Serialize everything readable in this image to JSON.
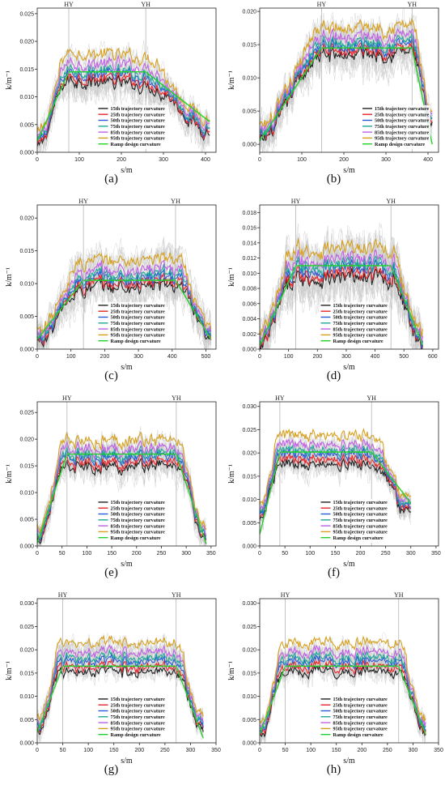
{
  "chart_data": [
    {
      "id": "a",
      "caption": "(a)",
      "type": "line",
      "xlabel": "s/m",
      "ylabel": "k/m⁻¹",
      "xlim": [
        0,
        425
      ],
      "ylim": [
        0,
        0.026
      ],
      "xticks": [
        "0",
        "100",
        "200",
        "300",
        "400"
      ],
      "xtick_values": [
        0,
        100,
        200,
        300,
        400
      ],
      "yticks": [
        "0.000",
        "0.005",
        "0.010",
        "0.015",
        "0.020",
        "0.025"
      ],
      "ytick_values": [
        0,
        0.005,
        0.01,
        0.015,
        0.02,
        0.025
      ],
      "markers": [
        {
          "label": "HY",
          "x": 75
        },
        {
          "label": "YH",
          "x": 258
        }
      ],
      "legend_position": "bottom-center",
      "profile": {
        "s0": 0,
        "s1": 75,
        "s2": 258,
        "s3": 410,
        "k0": 0.0015,
        "k1": 0.0145,
        "k2": 0.0135,
        "k3": 0.0045
      },
      "percentile_offsets": [
        -0.0015,
        -0.0008,
        0.0,
        0.0006,
        0.0018,
        0.0036
      ],
      "design": {
        "s_start": 0,
        "s_hy": 75,
        "s_yh": 258,
        "s_end": 410,
        "k_start": 0.002,
        "k_plateau": 0.0145,
        "k_end": 0.0055
      }
    },
    {
      "id": "b",
      "caption": "(b)",
      "type": "line",
      "xlabel": "s/m",
      "ylabel": "k/m⁻¹",
      "xlim": [
        0,
        425
      ],
      "ylim": [
        -0.0012,
        0.0205
      ],
      "xticks": [
        "0",
        "100",
        "200",
        "300",
        "400"
      ],
      "xtick_values": [
        0,
        100,
        200,
        300,
        400
      ],
      "yticks": [
        "0.000",
        "0.005",
        "0.010",
        "0.015",
        "0.020"
      ],
      "ytick_values": [
        0,
        0.005,
        0.01,
        0.015,
        0.02
      ],
      "markers": [
        {
          "label": "HY",
          "x": 147
        },
        {
          "label": "YH",
          "x": 362
        }
      ],
      "legend_position": "bottom-right",
      "profile": {
        "s0": 0,
        "s1": 147,
        "s2": 362,
        "s3": 410,
        "k0": 0.001,
        "k1": 0.0145,
        "k2": 0.0152,
        "k3": 0.0025
      },
      "percentile_offsets": [
        -0.0012,
        -0.0006,
        0.0,
        0.0005,
        0.0014,
        0.0028
      ],
      "design": {
        "s_start": 0,
        "s_hy": 147,
        "s_yh": 362,
        "s_end": 410,
        "k_start": 0.0005,
        "k_plateau": 0.0145,
        "k_end": 0.0
      }
    },
    {
      "id": "c",
      "caption": "(c)",
      "type": "line",
      "xlabel": "s/m",
      "ylabel": "k/m⁻¹",
      "xlim": [
        0,
        530
      ],
      "ylim": [
        0,
        0.022
      ],
      "xticks": [
        "0",
        "100",
        "200",
        "300",
        "400",
        "500"
      ],
      "xtick_values": [
        0,
        100,
        200,
        300,
        400,
        500
      ],
      "yticks": [
        "0.000",
        "0.005",
        "0.010",
        "0.015",
        "0.020"
      ],
      "ytick_values": [
        0,
        0.005,
        0.01,
        0.015,
        0.02
      ],
      "markers": [
        {
          "label": "HY",
          "x": 137
        },
        {
          "label": "YH",
          "x": 410
        }
      ],
      "legend_position": "bottom-center",
      "profile": {
        "s0": 0,
        "s1": 137,
        "s2": 410,
        "s3": 515,
        "k0": 0.0015,
        "k1": 0.0105,
        "k2": 0.011,
        "k3": 0.0015
      },
      "percentile_offsets": [
        -0.0013,
        -0.0007,
        0.0,
        0.0005,
        0.0013,
        0.0028
      ],
      "design": {
        "s_start": 0,
        "s_hy": 137,
        "s_yh": 410,
        "s_end": 515,
        "k_start": 0.0015,
        "k_plateau": 0.0105,
        "k_end": 0.0015
      }
    },
    {
      "id": "d",
      "caption": "(d)",
      "type": "line",
      "xlabel": "s/m",
      "ylabel": "k/m⁻¹",
      "xlim": [
        0,
        620
      ],
      "ylim": [
        0,
        0.019
      ],
      "xticks": [
        "0",
        "100",
        "200",
        "300",
        "400",
        "500",
        "600"
      ],
      "xtick_values": [
        0,
        100,
        200,
        300,
        400,
        500,
        600
      ],
      "yticks": [
        "0.000",
        "0.002",
        "0.004",
        "0.006",
        "0.008",
        "0.010",
        "0.012",
        "0.014",
        "0.016",
        "0.018"
      ],
      "ytick_values": [
        0,
        0.002,
        0.004,
        0.006,
        0.008,
        0.01,
        0.012,
        0.014,
        0.016,
        0.018
      ],
      "markers": [
        {
          "label": "HY",
          "x": 125
        },
        {
          "label": "YH",
          "x": 455
        }
      ],
      "legend_position": "bottom-center",
      "profile": {
        "s0": 0,
        "s1": 125,
        "s2": 455,
        "s3": 565,
        "k0": 0.0005,
        "k1": 0.0105,
        "k2": 0.0105,
        "k3": 0.0008
      },
      "percentile_offsets": [
        -0.0012,
        -0.0007,
        0.0,
        0.0005,
        0.0013,
        0.0027
      ],
      "design": {
        "s_start": 0,
        "s_hy": 125,
        "s_yh": 455,
        "s_end": 565,
        "k_start": 0.0005,
        "k_plateau": 0.011,
        "k_end": 0.0005
      }
    },
    {
      "id": "e",
      "caption": "(e)",
      "type": "line",
      "xlabel": "s/m",
      "ylabel": "k/m⁻¹",
      "xlim": [
        0,
        360
      ],
      "ylim": [
        0,
        0.027
      ],
      "xticks": [
        "0",
        "50",
        "100",
        "150",
        "200",
        "250",
        "300",
        "350"
      ],
      "xtick_values": [
        0,
        50,
        100,
        150,
        200,
        250,
        300,
        350
      ],
      "yticks": [
        "0.000",
        "0.005",
        "0.010",
        "0.015",
        "0.020",
        "0.025"
      ],
      "ytick_values": [
        0,
        0.005,
        0.01,
        0.015,
        0.02,
        0.025
      ],
      "markers": [
        {
          "label": "HY",
          "x": 60
        },
        {
          "label": "YH",
          "x": 280
        }
      ],
      "legend_position": "bottom-center",
      "profile": {
        "s0": 0,
        "s1": 60,
        "s2": 280,
        "s3": 340,
        "k0": 0.002,
        "k1": 0.0165,
        "k2": 0.0168,
        "k3": 0.0012
      },
      "percentile_offsets": [
        -0.0017,
        -0.0009,
        0.0,
        0.0006,
        0.0016,
        0.0032
      ],
      "design": {
        "s_start": 0,
        "s_hy": 60,
        "s_yh": 280,
        "s_end": 340,
        "k_start": 0.0005,
        "k_plateau": 0.0172,
        "k_end": 0.0005
      }
    },
    {
      "id": "f",
      "caption": "(f)",
      "type": "line",
      "xlabel": "s/m",
      "ylabel": "k/m⁻¹",
      "xlim": [
        0,
        355
      ],
      "ylim": [
        0,
        0.031
      ],
      "xticks": [
        "0",
        "50",
        "100",
        "150",
        "200",
        "250",
        "300",
        "350"
      ],
      "xtick_values": [
        0,
        50,
        100,
        150,
        200,
        250,
        300,
        350
      ],
      "yticks": [
        "0.000",
        "0.005",
        "0.010",
        "0.015",
        "0.020",
        "0.025",
        "0.030"
      ],
      "ytick_values": [
        0,
        0.005,
        0.01,
        0.015,
        0.02,
        0.025,
        0.03
      ],
      "markers": [
        {
          "label": "HY",
          "x": 40
        },
        {
          "label": "YH",
          "x": 222
        }
      ],
      "legend_position": "bottom-center",
      "profile": {
        "s0": 0,
        "s1": 40,
        "s2": 222,
        "s3": 300,
        "k0": 0.006,
        "k1": 0.0195,
        "k2": 0.0195,
        "k3": 0.0075
      },
      "percentile_offsets": [
        -0.0022,
        -0.0011,
        0.0,
        0.0009,
        0.0022,
        0.0042
      ],
      "design": {
        "s_start": 0,
        "s_hy": 40,
        "s_yh": 222,
        "s_end": 300,
        "k_start": 0.0025,
        "k_plateau": 0.0202,
        "k_end": 0.0092
      }
    },
    {
      "id": "g",
      "caption": "(g)",
      "type": "line",
      "xlabel": "s/m",
      "ylabel": "k/m⁻¹",
      "xlim": [
        0,
        350
      ],
      "ylim": [
        0,
        0.031
      ],
      "xticks": [
        "0",
        "50",
        "100",
        "150",
        "200",
        "250",
        "300",
        "350"
      ],
      "xtick_values": [
        0,
        50,
        100,
        150,
        200,
        250,
        300,
        350
      ],
      "yticks": [
        "0.000",
        "0.005",
        "0.010",
        "0.015",
        "0.020",
        "0.025",
        "0.030"
      ],
      "ytick_values": [
        0,
        0.005,
        0.01,
        0.015,
        0.02,
        0.025,
        0.03
      ],
      "markers": [
        {
          "label": "HY",
          "x": 50
        },
        {
          "label": "YH",
          "x": 272
        }
      ],
      "legend_position": "bottom-center",
      "profile": {
        "s0": 0,
        "s1": 50,
        "s2": 272,
        "s3": 325,
        "k0": 0.003,
        "k1": 0.0175,
        "k2": 0.0175,
        "k3": 0.0035
      },
      "percentile_offsets": [
        -0.0022,
        -0.0011,
        0.0,
        0.0008,
        0.002,
        0.004
      ],
      "design": {
        "s_start": 0,
        "s_hy": 50,
        "s_yh": 272,
        "s_end": 325,
        "k_start": 0.0022,
        "k_plateau": 0.0165,
        "k_end": 0.001
      }
    },
    {
      "id": "h",
      "caption": "(h)",
      "type": "line",
      "xlabel": "s/m",
      "ylabel": "k/m⁻¹",
      "xlim": [
        0,
        350
      ],
      "ylim": [
        0,
        0.031
      ],
      "xticks": [
        "0",
        "50",
        "100",
        "150",
        "200",
        "250",
        "300",
        "350"
      ],
      "xtick_values": [
        0,
        50,
        100,
        150,
        200,
        250,
        300,
        350
      ],
      "yticks": [
        "0.000",
        "0.005",
        "0.010",
        "0.015",
        "0.020",
        "0.025",
        "0.030"
      ],
      "ytick_values": [
        0,
        0.005,
        0.01,
        0.015,
        0.02,
        0.025,
        0.03
      ],
      "markers": [
        {
          "label": "HY",
          "x": 50
        },
        {
          "label": "YH",
          "x": 272
        }
      ],
      "legend_position": "bottom-center",
      "profile": {
        "s0": 0,
        "s1": 50,
        "s2": 272,
        "s3": 325,
        "k0": 0.002,
        "k1": 0.0175,
        "k2": 0.0175,
        "k3": 0.003
      },
      "percentile_offsets": [
        -0.0022,
        -0.0011,
        0.0,
        0.0008,
        0.002,
        0.004
      ],
      "design": {
        "s_start": 0,
        "s_hy": 50,
        "s_yh": 272,
        "s_end": 325,
        "k_start": 0.0018,
        "k_plateau": 0.0165,
        "k_end": 0.0018
      }
    }
  ],
  "series": [
    {
      "name": "15th trajectory curvature",
      "color": "#222222"
    },
    {
      "name": "25th trajectory curvature",
      "color": "#e8262a"
    },
    {
      "name": "50th trajectory curvature",
      "color": "#2a5bd7"
    },
    {
      "name": "75th trajectory curvature",
      "color": "#1fa79a"
    },
    {
      "name": "85th trajectory curvature",
      "color": "#c061e6"
    },
    {
      "name": "95th trajectory curvature",
      "color": "#d6a01e"
    },
    {
      "name": "Ramp design curvature",
      "color": "#22d12a"
    }
  ],
  "background_traces_color": "#c8c8c8"
}
